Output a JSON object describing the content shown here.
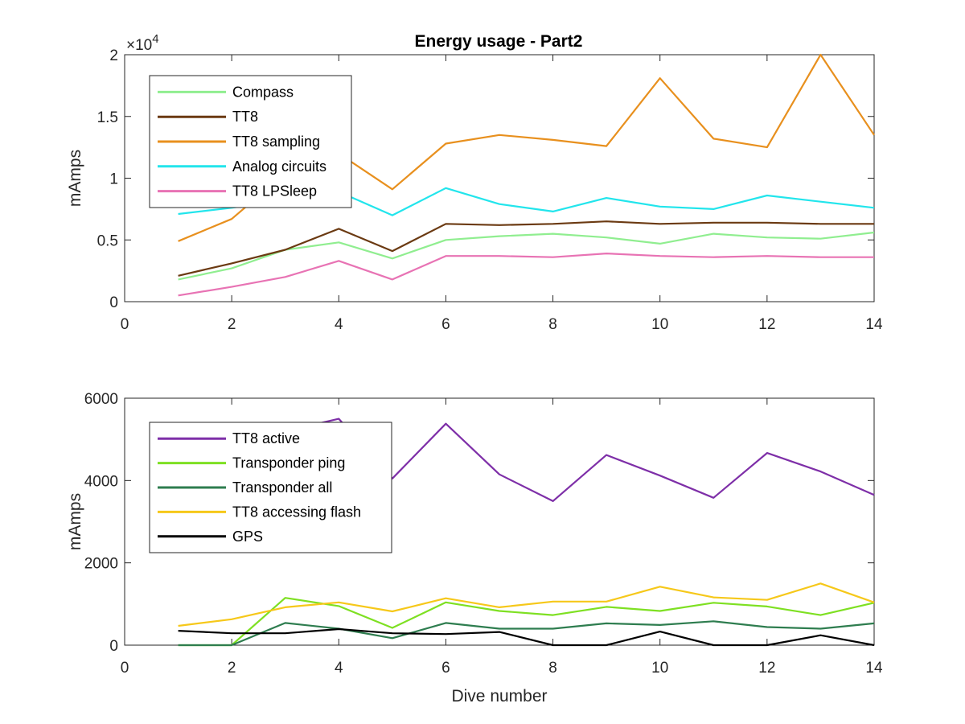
{
  "figure": {
    "title": "Energy usage - Part2"
  },
  "chart_data": [
    {
      "type": "line",
      "title": "Energy usage - Part2",
      "xlabel": "",
      "ylabel": "mAmps",
      "xlim": [
        0,
        14
      ],
      "ylim": [
        0,
        20000
      ],
      "xticks": [
        0,
        2,
        4,
        6,
        8,
        10,
        12,
        14
      ],
      "yticks": [
        0,
        5000,
        10000,
        15000,
        20000
      ],
      "ytick_labels": [
        "0",
        "0.5",
        "1",
        "1.5",
        "2"
      ],
      "y_multiplier": "×10",
      "y_multiplier_exp": "4",
      "grid": false,
      "legend_position": "top-left",
      "x": [
        1,
        2,
        3,
        4,
        5,
        6,
        7,
        8,
        9,
        10,
        11,
        12,
        13,
        14
      ],
      "series": [
        {
          "name": "Compass",
          "color": "#90ee90",
          "values": [
            1800,
            2700,
            4200,
            4800,
            3500,
            5000,
            5300,
            5500,
            5200,
            4700,
            5500,
            5200,
            5100,
            5600
          ]
        },
        {
          "name": "TT8",
          "color": "#6b3a12",
          "values": [
            2100,
            3100,
            4200,
            5900,
            4100,
            6300,
            6200,
            6300,
            6500,
            6300,
            6400,
            6400,
            6300,
            6300
          ]
        },
        {
          "name": "TT8 sampling",
          "color": "#e8901e",
          "values": [
            4900,
            6700,
            10400,
            12000,
            9100,
            12800,
            13500,
            13100,
            12600,
            18100,
            13200,
            12500,
            20000,
            13500
          ]
        },
        {
          "name": "Analog circuits",
          "color": "#22e5ec",
          "values": [
            7100,
            7600,
            8200,
            8900,
            7000,
            9200,
            7900,
            7300,
            8400,
            7700,
            7500,
            8600,
            8100,
            7600
          ]
        },
        {
          "name": "TT8 LPSleep",
          "color": "#e873b4",
          "values": [
            500,
            1200,
            2000,
            3300,
            1800,
            3700,
            3700,
            3600,
            3900,
            3700,
            3600,
            3700,
            3600,
            3600
          ]
        }
      ]
    },
    {
      "type": "line",
      "title": "",
      "xlabel": "Dive number",
      "ylabel": "mAmps",
      "xlim": [
        0,
        14
      ],
      "ylim": [
        0,
        6000
      ],
      "xticks": [
        0,
        2,
        4,
        6,
        8,
        10,
        12,
        14
      ],
      "yticks": [
        0,
        2000,
        4000,
        6000
      ],
      "ytick_labels": [
        "0",
        "2000",
        "4000",
        "6000"
      ],
      "grid": false,
      "legend_position": "top-left",
      "x": [
        1,
        2,
        3,
        4,
        5,
        6,
        7,
        8,
        9,
        10,
        11,
        12,
        13,
        14
      ],
      "series": [
        {
          "name": "TT8 active",
          "color": "#7e2fa8",
          "values": [
            4600,
            4900,
            5200,
            5500,
            4050,
            5380,
            4150,
            3500,
            4620,
            4120,
            3580,
            4670,
            4220,
            3650
          ]
        },
        {
          "name": "Transponder ping",
          "color": "#7ee022",
          "values": [
            0,
            0,
            1150,
            950,
            420,
            1040,
            830,
            730,
            930,
            830,
            1030,
            940,
            730,
            1030
          ]
        },
        {
          "name": "Transponder all",
          "color": "#2e7d4f",
          "values": [
            0,
            0,
            540,
            400,
            170,
            540,
            400,
            400,
            530,
            490,
            580,
            440,
            400,
            530
          ]
        },
        {
          "name": "TT8 accessing flash",
          "color": "#f6c81a",
          "values": [
            470,
            630,
            920,
            1040,
            820,
            1140,
            920,
            1060,
            1060,
            1420,
            1160,
            1100,
            1500,
            1040
          ]
        },
        {
          "name": "GPS",
          "color": "#000000",
          "values": [
            350,
            290,
            290,
            390,
            290,
            270,
            320,
            0,
            0,
            330,
            0,
            0,
            240,
            0
          ]
        }
      ]
    }
  ]
}
